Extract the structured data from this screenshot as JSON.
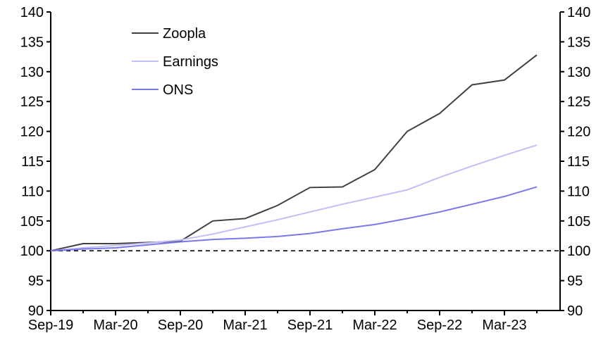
{
  "chart_data": {
    "type": "line",
    "title": "",
    "xlabel": "",
    "ylabel": "",
    "ylim": [
      90,
      140
    ],
    "yticks": [
      90,
      95,
      100,
      105,
      110,
      115,
      120,
      125,
      130,
      135,
      140
    ],
    "x_tick_labels": [
      "Sep-19",
      "Mar-20",
      "Sep-20",
      "Mar-21",
      "Sep-21",
      "Mar-22",
      "Sep-22",
      "Mar-23"
    ],
    "x": [
      "Sep-19",
      "Dec-19",
      "Mar-20",
      "Jun-20",
      "Sep-20",
      "Dec-20",
      "Mar-21",
      "Jun-21",
      "Sep-21",
      "Dec-21",
      "Mar-22",
      "Jun-22",
      "Sep-22",
      "Dec-22",
      "Mar-23",
      "Jun-23"
    ],
    "reference_line": 100,
    "grid": false,
    "legend_position": "top-left",
    "series": [
      {
        "name": "Zoopla",
        "color": "#404040",
        "values": [
          100,
          101.2,
          101.2,
          101.4,
          101.6,
          105,
          105.4,
          107.6,
          110.6,
          110.7,
          113.6,
          120,
          123,
          127.8,
          128.6,
          132.8
        ]
      },
      {
        "name": "Earnings",
        "color": "#c0bffa",
        "values": [
          100,
          100.5,
          100.9,
          101.3,
          101.8,
          102.8,
          104,
          105.2,
          106.5,
          107.8,
          109,
          110.2,
          112.3,
          114.2,
          116,
          117.7
        ]
      },
      {
        "name": "ONS",
        "color": "#7b78ee",
        "values": [
          100,
          100.3,
          100.5,
          101,
          101.5,
          101.9,
          102.1,
          102.4,
          102.9,
          103.7,
          104.4,
          105.4,
          106.5,
          107.8,
          109.1,
          110.7
        ]
      }
    ]
  }
}
